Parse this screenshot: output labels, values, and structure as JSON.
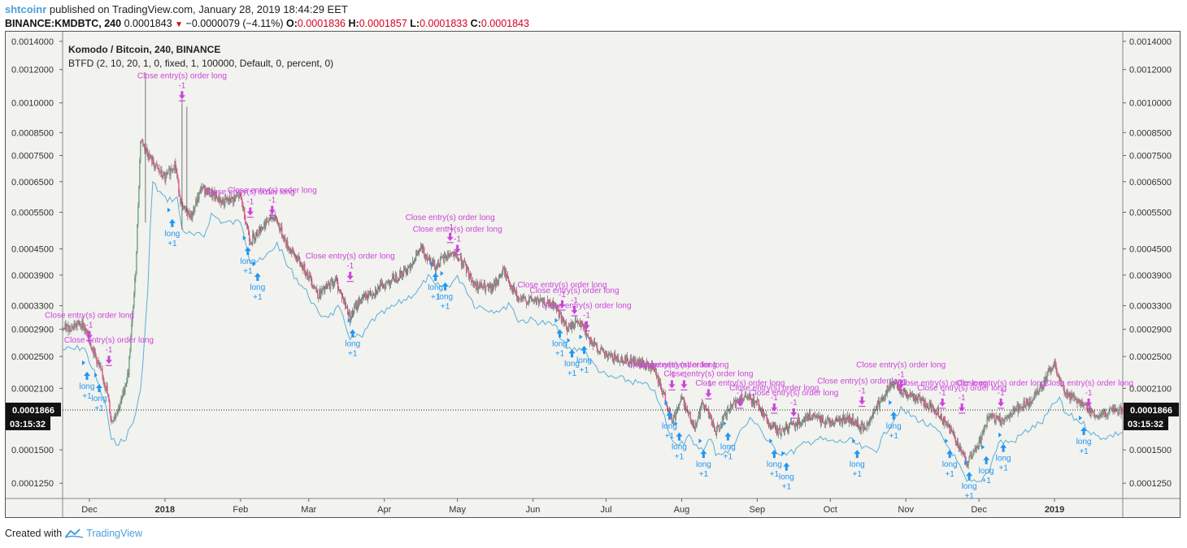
{
  "header": {
    "user": "shtcoinr",
    "published": "published on TradingView.com, January 28, 2019 18:44:29 EET",
    "symbol": "BINANCE:KMDBTC, 240",
    "last": "0.0001843",
    "change": "−0.0000079 (−4.11%)",
    "o_label": "O:",
    "o_value": "0.0001836",
    "h_label": "H:",
    "h_value": "0.0001857",
    "l_label": "L:",
    "l_value": "0.0001833",
    "c_label": "C:",
    "c_value": "0.0001843"
  },
  "chart_title": "Komodo / Bitcoin, 240, BINANCE",
  "indicator_label": "BTFD (2, 10, 20, 1, 0, fixed, 1, 100000, Default, 0, percent, 0)",
  "footer": {
    "created": "Created with",
    "brand": "TradingView"
  },
  "colors": {
    "up": "#6ba583",
    "down": "#e84f88",
    "band": "#5ab0d8",
    "long": "#2196f3",
    "close": "#cc44dd",
    "bg": "#f2f2ee"
  },
  "chart_data": {
    "type": "candlestick",
    "y_scale": "log",
    "ylim": [
      0.000115,
      0.00145
    ],
    "y_ticks": [
      "0.0014000",
      "0.0012000",
      "0.0010000",
      "0.0008500",
      "0.0007500",
      "0.0006500",
      "0.0005500",
      "0.0004500",
      "0.0003900",
      "0.0003300",
      "0.0002900",
      "0.0002500",
      "0.0002100",
      "0.0001500",
      "0.0001250"
    ],
    "x_ticks": [
      "Dec",
      "2018",
      "Feb",
      "Mar",
      "Apr",
      "May",
      "Jun",
      "Jul",
      "Aug",
      "Sep",
      "Oct",
      "Nov",
      "Dec",
      "2019"
    ],
    "x_range": [
      "2017-11-20",
      "2019-01-29"
    ],
    "x_tick_dates": [
      "2017-12-01",
      "2018-01-01",
      "2018-02-01",
      "2018-03-01",
      "2018-04-01",
      "2018-05-01",
      "2018-06-01",
      "2018-07-01",
      "2018-08-01",
      "2018-09-01",
      "2018-10-01",
      "2018-11-01",
      "2018-12-01",
      "2019-01-01"
    ],
    "current_price": "0.0001866",
    "countdown": "03:15:32",
    "price_path": [
      [
        "2017-11-20",
        0.00029
      ],
      [
        "2017-11-28",
        0.0003
      ],
      [
        "2017-12-03",
        0.000255
      ],
      [
        "2017-12-08",
        0.00021
      ],
      [
        "2017-12-10",
        0.000175
      ],
      [
        "2017-12-14",
        0.000195
      ],
      [
        "2017-12-17",
        0.00023
      ],
      [
        "2017-12-20",
        0.0004
      ],
      [
        "2017-12-22",
        0.00082
      ],
      [
        "2017-12-27",
        0.00072
      ],
      [
        "2018-01-01",
        0.00066
      ],
      [
        "2018-01-05",
        0.00072
      ],
      [
        "2018-01-08",
        0.00056
      ],
      [
        "2018-01-12",
        0.00054
      ],
      [
        "2018-01-16",
        0.00063
      ],
      [
        "2018-01-25",
        0.00058
      ],
      [
        "2018-02-01",
        0.0006
      ],
      [
        "2018-02-05",
        0.00047
      ],
      [
        "2018-02-10",
        0.00051
      ],
      [
        "2018-02-15",
        0.00054
      ],
      [
        "2018-02-20",
        0.00046
      ],
      [
        "2018-03-01",
        0.00039
      ],
      [
        "2018-03-05",
        0.00035
      ],
      [
        "2018-03-12",
        0.00038
      ],
      [
        "2018-03-18",
        0.00031
      ],
      [
        "2018-03-22",
        0.00034
      ],
      [
        "2018-04-01",
        0.00037
      ],
      [
        "2018-04-10",
        0.0004
      ],
      [
        "2018-04-16",
        0.00045
      ],
      [
        "2018-04-22",
        0.00041
      ],
      [
        "2018-04-28",
        0.00044
      ],
      [
        "2018-05-03",
        0.00042
      ],
      [
        "2018-05-08",
        0.00037
      ],
      [
        "2018-05-15",
        0.00036
      ],
      [
        "2018-05-20",
        0.0004
      ],
      [
        "2018-05-26",
        0.00034
      ],
      [
        "2018-06-01",
        0.00034
      ],
      [
        "2018-06-10",
        0.00033
      ],
      [
        "2018-06-15",
        0.00029
      ],
      [
        "2018-06-20",
        0.000305
      ],
      [
        "2018-06-25",
        0.00027
      ],
      [
        "2018-07-01",
        0.00025
      ],
      [
        "2018-07-10",
        0.000245
      ],
      [
        "2018-07-20",
        0.000235
      ],
      [
        "2018-07-25",
        0.0002
      ],
      [
        "2018-07-28",
        0.000175
      ],
      [
        "2018-08-01",
        0.0002
      ],
      [
        "2018-08-06",
        0.00017
      ],
      [
        "2018-08-10",
        0.000195
      ],
      [
        "2018-08-15",
        0.000165
      ],
      [
        "2018-08-20",
        0.000185
      ],
      [
        "2018-08-25",
        0.0002
      ],
      [
        "2018-09-01",
        0.000195
      ],
      [
        "2018-09-05",
        0.000175
      ],
      [
        "2018-09-10",
        0.000165
      ],
      [
        "2018-09-15",
        0.000172
      ],
      [
        "2018-09-22",
        0.00018
      ],
      [
        "2018-10-01",
        0.000175
      ],
      [
        "2018-10-08",
        0.000178
      ],
      [
        "2018-10-15",
        0.000168
      ],
      [
        "2018-10-20",
        0.00019
      ],
      [
        "2018-10-26",
        0.000215
      ],
      [
        "2018-11-01",
        0.000205
      ],
      [
        "2018-11-08",
        0.000195
      ],
      [
        "2018-11-14",
        0.000185
      ],
      [
        "2018-11-20",
        0.000165
      ],
      [
        "2018-11-26",
        0.00014
      ],
      [
        "2018-11-30",
        0.00015
      ],
      [
        "2018-12-05",
        0.00018
      ],
      [
        "2018-12-10",
        0.000175
      ],
      [
        "2018-12-15",
        0.000185
      ],
      [
        "2018-12-22",
        0.000195
      ],
      [
        "2018-12-28",
        0.00022
      ],
      [
        "2019-01-01",
        0.00024
      ],
      [
        "2019-01-05",
        0.000205
      ],
      [
        "2019-01-12",
        0.000195
      ],
      [
        "2019-01-18",
        0.00018
      ],
      [
        "2019-01-24",
        0.000185
      ],
      [
        "2019-01-29",
        0.000186
      ]
    ],
    "long_entries": [
      [
        "2017-11-30",
        0.00023
      ],
      [
        "2017-12-05",
        0.000215
      ],
      [
        "2018-01-04",
        0.00053
      ],
      [
        "2018-02-04",
        0.000455
      ],
      [
        "2018-02-08",
        0.000395
      ],
      [
        "2018-03-19",
        0.00029
      ],
      [
        "2018-04-22",
        0.000395
      ],
      [
        "2018-04-26",
        0.000375
      ],
      [
        "2018-06-12",
        0.00029
      ],
      [
        "2018-06-17",
        0.00026
      ],
      [
        "2018-06-22",
        0.000265
      ],
      [
        "2018-07-27",
        0.000185
      ],
      [
        "2018-07-31",
        0.000165
      ],
      [
        "2018-08-10",
        0.00015
      ],
      [
        "2018-08-20",
        0.000165
      ],
      [
        "2018-09-08",
        0.00015
      ],
      [
        "2018-09-13",
        0.00014
      ],
      [
        "2018-10-12",
        0.00015
      ],
      [
        "2018-10-27",
        0.000185
      ],
      [
        "2018-11-19",
        0.00015
      ],
      [
        "2018-11-27",
        0.000133
      ],
      [
        "2018-12-04",
        0.000145
      ],
      [
        "2018-12-11",
        0.000155
      ],
      [
        "2019-01-13",
        0.00017
      ]
    ],
    "close_markers": [
      [
        "2017-12-01",
        0.000275
      ],
      [
        "2017-12-09",
        0.00024
      ],
      [
        "2018-01-08",
        0.00102
      ],
      [
        "2018-02-05",
        0.00054
      ],
      [
        "2018-02-14",
        0.000545
      ],
      [
        "2018-03-18",
        0.00038
      ],
      [
        "2018-04-28",
        0.00047
      ],
      [
        "2018-05-01",
        0.00044
      ],
      [
        "2018-06-13",
        0.000325
      ],
      [
        "2018-06-18",
        0.000315
      ],
      [
        "2018-06-23",
        0.00029
      ],
      [
        "2018-07-28",
        0.00021
      ],
      [
        "2018-08-02",
        0.00021
      ],
      [
        "2018-08-12",
        0.0002
      ],
      [
        "2018-08-25",
        0.00019
      ],
      [
        "2018-09-08",
        0.000185
      ],
      [
        "2018-09-16",
        0.00018
      ],
      [
        "2018-10-14",
        0.000192
      ],
      [
        "2018-10-30",
        0.00021
      ],
      [
        "2018-11-16",
        0.00019
      ],
      [
        "2018-11-24",
        0.000185
      ],
      [
        "2018-12-10",
        0.00019
      ],
      [
        "2019-01-15",
        0.00019
      ]
    ],
    "close_labels": [
      "Close entry(s) order long",
      "Close entry(s) order long",
      "Close entry(s) order long",
      "Close entry(s) order long",
      "Close entry(s) order long",
      "Close entry(s) order long",
      "Close entry(s) order long",
      "Close entry(s) order long",
      "Close entry(s) order long",
      "Close entry(s) order long",
      "Close entry(s) order long",
      "Close entry(s) order long",
      "Close entry(s) order long",
      "Close entry(s) order long",
      "Close entry(s) order long",
      "Close entry(s) order long",
      "Close entry(s) order long",
      "Close entry(s) order long",
      "Close entry(s) order long",
      "Close entry(s) order long",
      "Close entry(s) order long",
      "Close entry(s) order long",
      "Close entry(s) order long"
    ],
    "close_qty": "-1",
    "long_label": "long",
    "long_qty": "+1"
  }
}
